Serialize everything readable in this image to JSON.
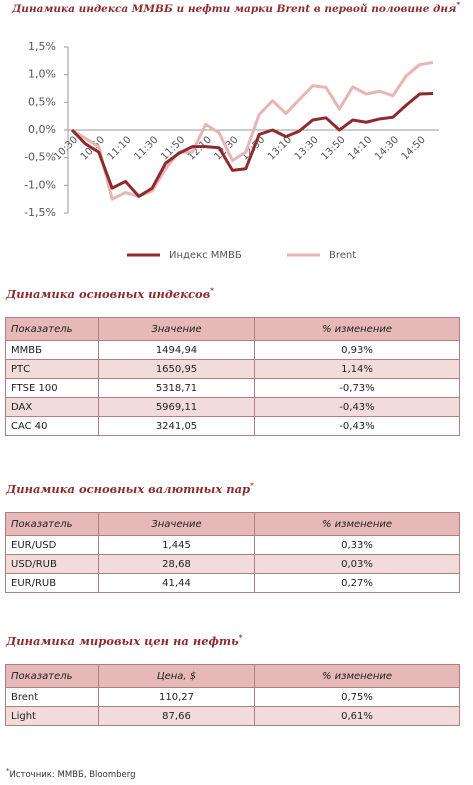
{
  "chart_data": {
    "type": "line",
    "title": "Динамика индекса ММВБ и нефти марки Brent в первой половине дня",
    "title_mark": "*",
    "categories": [
      "10:30",
      null,
      "10:50",
      null,
      "11:10",
      null,
      "11:30",
      null,
      "11:50",
      null,
      "12:10",
      null,
      "12:30",
      null,
      "12:50",
      null,
      "13:10",
      null,
      "13:30",
      null,
      "13:50",
      null,
      "14:10",
      null,
      "14:30",
      null,
      "14:50",
      null
    ],
    "series": [
      {
        "name": "Индекс ММВБ",
        "color": "#8e2b2e",
        "values": [
          0,
          -0.25,
          -0.4,
          -1.05,
          -0.93,
          -1.2,
          -1.05,
          -0.6,
          -0.42,
          -0.3,
          -0.3,
          -0.32,
          -0.73,
          -0.7,
          -0.08,
          0.0,
          -0.12,
          -0.02,
          0.18,
          0.22,
          0.0,
          0.18,
          0.14,
          0.2,
          0.23,
          0.45,
          0.65,
          0.66
        ]
      },
      {
        "name": "Brent",
        "color": "#e8b5b5",
        "values": [
          0,
          -0.15,
          -0.3,
          -1.25,
          -1.13,
          -1.2,
          -1.1,
          -0.7,
          -0.4,
          -0.4,
          0.1,
          -0.05,
          -0.55,
          -0.4,
          0.28,
          0.53,
          0.3,
          0.55,
          0.8,
          0.77,
          0.38,
          0.78,
          0.65,
          0.7,
          0.62,
          0.98,
          1.18,
          1.22
        ]
      }
    ],
    "ylim": [
      -1.5,
      1.5
    ],
    "yticks": [
      {
        "value": -1.5,
        "label": "-1,5%"
      },
      {
        "value": -1,
        "label": "-1,0%"
      },
      {
        "value": -0.5,
        "label": "-0,5%"
      },
      {
        "value": 0,
        "label": "0,0%"
      },
      {
        "value": 0.5,
        "label": "0,5%"
      },
      {
        "value": 1,
        "label": "1,0%"
      },
      {
        "value": 1.5,
        "label": "1,5%"
      }
    ],
    "grid": false,
    "legend": "bottom"
  },
  "indices": {
    "title": "Динамика основных индексов",
    "title_mark": "*",
    "header": [
      "Показатель",
      "Значение",
      "% изменение"
    ],
    "rows": [
      [
        "ММВБ",
        "1494,94",
        "0,93%"
      ],
      [
        "РТС",
        "1650,95",
        "1,14%"
      ],
      [
        "FTSE 100",
        "5318,71",
        "-0,73%"
      ],
      [
        "DAX",
        "5969,11",
        "-0,43%"
      ],
      [
        "CAC 40",
        "3241,05",
        "-0,43%"
      ]
    ]
  },
  "currencies": {
    "title": "Динамика основных валютных пар",
    "title_mark": "*",
    "header": [
      "Показатель",
      "Значение",
      "% изменение"
    ],
    "rows": [
      [
        "EUR/USD",
        "1,445",
        "0,33%"
      ],
      [
        "USD/RUB",
        "28,68",
        "0,03%"
      ],
      [
        "EUR/RUB",
        "41,44",
        "0,27%"
      ]
    ]
  },
  "oil": {
    "title": "Динамика мировых цен на нефть",
    "title_mark": "*",
    "header": [
      "Показатель",
      "Цена, $",
      "% изменение"
    ],
    "rows": [
      [
        "Brent",
        "110,27",
        "0,75%"
      ],
      [
        "Light",
        "87,66",
        "0,61%"
      ]
    ]
  },
  "footnote": {
    "mark": "*",
    "text": "Источник: ММВБ, Bloomberg"
  }
}
